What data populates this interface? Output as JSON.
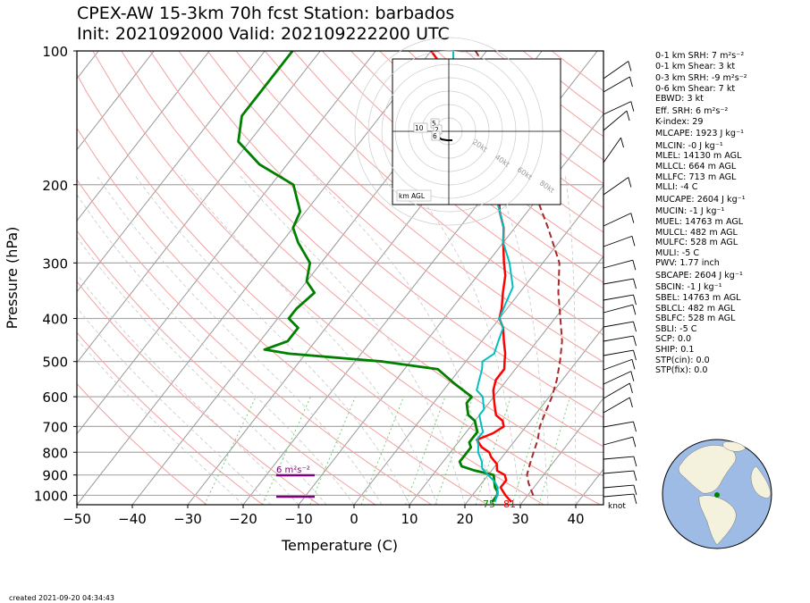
{
  "title": {
    "line1": "CPEX-AW 15-3km  70h fcst  Station: barbados",
    "line2": "Init: 2021092000  Valid: 2021092222 00 UTC"
  },
  "created": "created 2021-09-20 04:34:43",
  "indices": [
    {
      "key": "srh1",
      "text": "0-1 km SRH: 7 m²s⁻²"
    },
    {
      "key": "shear1",
      "text": "0-1 km Shear: 3 kt"
    },
    {
      "key": "srh3",
      "text": "0-3 km SRH: -9 m²s⁻²"
    },
    {
      "key": "shear6",
      "text": "0-6 km Shear: 7 kt"
    },
    {
      "key": "ebwd",
      "text": "EBWD: 3 kt"
    },
    {
      "key": "effsrh",
      "text": "Eff. SRH: 6 m²s⁻²"
    },
    {
      "key": "kindex",
      "text": "K-index: 29"
    },
    {
      "key": "mlcape",
      "text": "MLCAPE: 1923 J kg⁻¹"
    },
    {
      "key": "mlcin",
      "text": "MLCIN: -0 J kg⁻¹"
    },
    {
      "key": "mlel",
      "text": "MLEL: 14130 m AGL"
    },
    {
      "key": "mllcl",
      "text": "MLLCL: 664 m AGL"
    },
    {
      "key": "mllfc",
      "text": "MLLFC: 713 m AGL"
    },
    {
      "key": "mlli",
      "text": "MLLI: -4 C"
    },
    {
      "key": "mucape",
      "text": "MUCAPE: 2604 J kg⁻¹"
    },
    {
      "key": "mucin",
      "text": "MUCIN: -1 J kg⁻¹"
    },
    {
      "key": "muel",
      "text": "MUEL: 14763 m AGL"
    },
    {
      "key": "mulcl",
      "text": "MULCL: 482 m AGL"
    },
    {
      "key": "mulfc",
      "text": "MULFC: 528 m AGL"
    },
    {
      "key": "muli",
      "text": "MULI: -5 C"
    },
    {
      "key": "pwv",
      "text": "PWV: 1.77 inch"
    },
    {
      "key": "sbcape",
      "text": "SBCAPE: 2604 J kg⁻¹"
    },
    {
      "key": "sbcin",
      "text": "SBCIN: -1 J kg⁻¹"
    },
    {
      "key": "sbel",
      "text": "SBEL: 14763 m AGL"
    },
    {
      "key": "sblcl",
      "text": "SBLCL: 482 m AGL"
    },
    {
      "key": "sblfc",
      "text": "SBLFC: 528 m AGL"
    },
    {
      "key": "sbli",
      "text": "SBLI: -5 C"
    },
    {
      "key": "scp",
      "text": "SCP: 0.0"
    },
    {
      "key": "ship",
      "text": "SHIP: 0.1"
    },
    {
      "key": "stpcin",
      "text": "STP(cin): 0.0"
    },
    {
      "key": "stpfix",
      "text": "STP(fix): 0.0"
    }
  ],
  "colors": {
    "temperature": "#ff0000",
    "dewpoint": "#008000",
    "wetbulb": "#00bfbf",
    "parcel": "#a52a2a",
    "srh": "#800080",
    "dry_adiabat": "#f4a0a0",
    "moist_adiabat": "#c8c8c8",
    "mixing_ratio": "#7fc97f",
    "isotherm": "#999999",
    "ocean": "#9dbbe4",
    "land": "#f4f1dc"
  },
  "chart_data": {
    "type": "skew-t",
    "xlabel": "Temperature (C)",
    "ylabel": "Pressure (hPa)",
    "xlim": [
      -50,
      45
    ],
    "ylim": [
      1050,
      100
    ],
    "xticks": [
      -50,
      -40,
      -30,
      -20,
      -10,
      0,
      10,
      20,
      30,
      40
    ],
    "xtick_labels": [
      "−50",
      "−40",
      "−30",
      "−20",
      "−10",
      "0",
      "10",
      "20",
      "30",
      "40"
    ],
    "pressure_levels": [
      100,
      200,
      300,
      400,
      500,
      600,
      700,
      800,
      900,
      1000
    ],
    "yticks": [
      "100",
      "200",
      "300",
      "400",
      "500",
      "600",
      "700",
      "800",
      "900",
      "1000"
    ],
    "series": [
      {
        "key": "temperature",
        "p": [
          1035,
          1000,
          960,
          925,
          900,
          880,
          850,
          820,
          800,
          780,
          750,
          725,
          700,
          680,
          660,
          640,
          620,
          600,
          580,
          550,
          520,
          500,
          480,
          450,
          420,
          400,
          380,
          350,
          320,
          300,
          270,
          250,
          230,
          200,
          180,
          160,
          140,
          130,
          120,
          110,
          100
        ],
        "t": [
          28,
          26,
          24,
          24,
          23,
          21,
          20,
          18,
          17,
          15,
          13,
          15,
          16,
          15,
          13,
          12,
          11,
          10,
          9,
          8,
          8,
          7,
          6,
          4,
          2,
          0,
          -1,
          -3,
          -5,
          -7,
          -10,
          -12,
          -15,
          -19,
          -23,
          -27,
          -32,
          -36,
          -40,
          -45,
          -50
        ]
      },
      {
        "key": "dewpoint",
        "p": [
          1035,
          1000,
          980,
          960,
          930,
          900,
          880,
          860,
          840,
          820,
          800,
          780,
          760,
          740,
          720,
          700,
          680,
          660,
          640,
          620,
          600,
          560,
          520,
          500,
          480,
          470,
          450,
          420,
          400,
          380,
          350,
          330,
          300,
          270,
          250,
          230,
          200,
          180,
          160,
          140,
          120,
          100
        ],
        "t": [
          24.5,
          24.5,
          24,
          23,
          22,
          21,
          17,
          14,
          13,
          13,
          13,
          13,
          12,
          12,
          12,
          11,
          10,
          8,
          7,
          6,
          6,
          1,
          -4,
          -15,
          -33,
          -38,
          -35,
          -35,
          -38,
          -38,
          -37,
          -40,
          -42,
          -47,
          -50,
          -51,
          -56,
          -65,
          -72,
          -75,
          -75,
          -75
        ]
      },
      {
        "key": "wetbulb",
        "p": [
          1035,
          1000,
          960,
          930,
          900,
          870,
          840,
          800,
          770,
          750,
          720,
          700,
          680,
          660,
          640,
          620,
          600,
          580,
          550,
          520,
          500,
          480,
          450,
          420,
          400,
          370,
          340,
          300,
          270,
          250,
          200,
          180,
          160,
          140,
          120,
          100
        ],
        "t": [
          25,
          24.5,
          23.5,
          22,
          20,
          18,
          17,
          15,
          14,
          13,
          13,
          12,
          11,
          10,
          10,
          9,
          8,
          6,
          5,
          4,
          3,
          4,
          3,
          2,
          0,
          -1,
          -2,
          -6,
          -10,
          -12,
          -20,
          -25,
          -30,
          -35,
          -41,
          -46
        ]
      },
      {
        "key": "parcel",
        "p": [
          1000,
          940,
          900,
          850,
          800,
          750,
          700,
          650,
          600,
          550,
          500,
          450,
          400,
          350,
          300,
          250,
          200,
          160,
          120,
          100
        ],
        "t": [
          31,
          28.5,
          27,
          26,
          25,
          24,
          22.5,
          21.5,
          20.5,
          19,
          17,
          14.5,
          11,
          7,
          3,
          -4,
          -13,
          -22,
          -33,
          -42
        ]
      }
    ],
    "srh_label": "6 m²s⁻²",
    "surface_labels": {
      "dewpoint": "75",
      "temperature": "81"
    },
    "barb_units": "knot",
    "hodograph": {
      "labels": [
        "20kt",
        "40kt",
        "60kt",
        "80kt"
      ],
      "height_labels": [
        "10",
        "5",
        "2",
        "6"
      ],
      "legend": "km AGL"
    },
    "globe": {
      "station_marker": "barbados"
    }
  }
}
